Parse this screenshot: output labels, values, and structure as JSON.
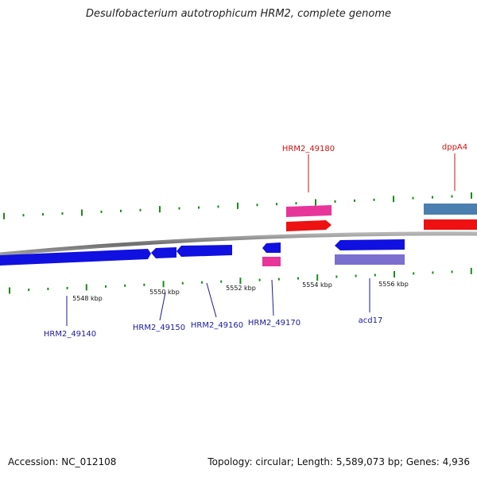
{
  "title": "Desulfobacterium autotrophicum HRM2, complete genome",
  "footer": {
    "accession": "Accession: NC_012108",
    "summary": "Topology: circular; Length: 5,589,073 bp; Genes: 4,936"
  },
  "colors": {
    "backbone": "#8a8a8a",
    "tick": "#1a8a1a",
    "gene_blue": "#1010e0",
    "gene_pink": "#e8359a",
    "gene_red": "#ee1111",
    "gene_steel": "#4a7fb0",
    "gene_purple": "#7b6fd0",
    "label_blue": "#1a1a9a",
    "label_red": "#cc1111"
  },
  "scale": {
    "ticks": [
      {
        "label": "5548 kbp"
      },
      {
        "label": "5550 kbp"
      },
      {
        "label": "5552 kbp"
      },
      {
        "label": "5554 kbp"
      },
      {
        "label": "5556 kbp"
      }
    ]
  },
  "gene_labels": [
    {
      "text": "HRM2_49140",
      "color": "label_blue"
    },
    {
      "text": "HRM2_49150",
      "color": "label_blue"
    },
    {
      "text": "HRM2_49160",
      "color": "label_blue"
    },
    {
      "text": "HRM2_49170",
      "color": "label_blue"
    },
    {
      "text": "acd17",
      "color": "label_blue"
    },
    {
      "text": "HRM2_49180",
      "color": "label_red"
    },
    {
      "text": "dppA4",
      "color": "label_red"
    }
  ]
}
